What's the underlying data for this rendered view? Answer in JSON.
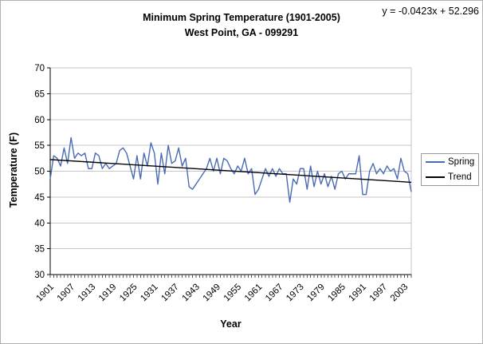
{
  "chart_data": {
    "type": "line",
    "title": "Minimum Spring Temperature (1901-2005)",
    "subtitle": "West Point, GA - 099291",
    "xlabel": "Year",
    "ylabel": "Temperature (F)",
    "x_start": 1901,
    "x_end": 2005,
    "ylim": [
      30,
      70
    ],
    "yticks": [
      30,
      35,
      40,
      45,
      50,
      55,
      60,
      65,
      70
    ],
    "xtick_years": [
      1901,
      1907,
      1913,
      1919,
      1925,
      1931,
      1937,
      1943,
      1949,
      1955,
      1961,
      1967,
      1973,
      1979,
      1985,
      1991,
      1997,
      2003
    ],
    "grid": true,
    "grid_color": "#c6c6c6",
    "axis_color": "#000000",
    "legend_position": "right",
    "series": [
      {
        "name": "Spring",
        "color": "#4a6ab4",
        "values": [
          48.5,
          53,
          52.5,
          51,
          54.5,
          51.5,
          56.5,
          52.5,
          53.5,
          53,
          53.5,
          50.5,
          50.5,
          53.5,
          53,
          50.5,
          51.5,
          50.5,
          51,
          51.5,
          54,
          54.5,
          53.5,
          51,
          48.5,
          53,
          48.5,
          53.5,
          51,
          55.5,
          53.5,
          47.5,
          53.5,
          49.5,
          55,
          51.5,
          52,
          54.5,
          51,
          52.5,
          47,
          46.5,
          47.5,
          48.5,
          49.5,
          50.5,
          52.5,
          50,
          52.5,
          49.5,
          52.5,
          52,
          50.5,
          49.5,
          51,
          50,
          52.5,
          49.5,
          50.5,
          45.5,
          46.5,
          48.5,
          50.5,
          49,
          50.5,
          49,
          50.5,
          49.5,
          49.5,
          44,
          48.5,
          47.5,
          50.5,
          50.5,
          46.5,
          51,
          47,
          50,
          47.5,
          49.5,
          47,
          49,
          46.5,
          49.5,
          50,
          48.5,
          49.5,
          49.5,
          49.5,
          53,
          45.5,
          45.5,
          50,
          51.5,
          49.5,
          50.5,
          49.5,
          51,
          50,
          50.5,
          48.5,
          52.5,
          50,
          49.5,
          46
        ]
      }
    ],
    "trend": {
      "name": "Trend",
      "color": "#000000",
      "slope": -0.0423,
      "intercept": 52.296,
      "equation": "y = -0.0423x + 52.296"
    }
  }
}
